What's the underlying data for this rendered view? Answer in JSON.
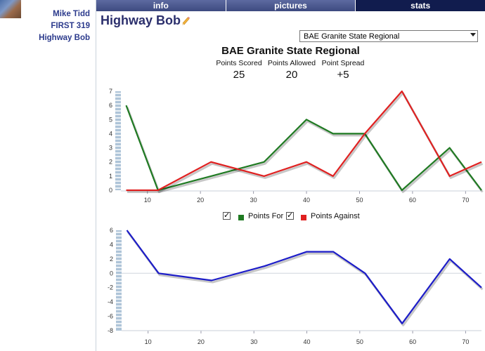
{
  "user": {
    "name": "Mike Tidd",
    "team": "FIRST 319",
    "robot": "Highway Bob"
  },
  "tabs": [
    {
      "label": "info",
      "active": false
    },
    {
      "label": "pictures",
      "active": false
    },
    {
      "label": "stats",
      "active": true
    }
  ],
  "page_title": "Highway Bob",
  "event_select": {
    "selected": "BAE Granite State Regional"
  },
  "event": {
    "title": "BAE Granite State Regional",
    "stats": [
      {
        "label": "Points Scored",
        "value": "25"
      },
      {
        "label": "Points Allowed",
        "value": "20"
      },
      {
        "label": "Point Spread",
        "value": "+5"
      }
    ]
  },
  "legend": {
    "points_for": "Points For",
    "points_against": "Points Against"
  },
  "colors": {
    "points_for": "#1f7a22",
    "points_against": "#e02020",
    "spread": "#1c1cc8"
  },
  "chart_data": [
    {
      "type": "line",
      "xlim": [
        5,
        73
      ],
      "ylim": [
        0,
        7
      ],
      "x_ticks": [
        10,
        20,
        30,
        40,
        50,
        60,
        70
      ],
      "y_ticks": [
        0,
        1,
        2,
        3,
        4,
        5,
        6,
        7
      ],
      "series": [
        {
          "name": "Points For",
          "x": [
            6,
            12,
            22,
            32,
            40,
            45,
            51,
            58,
            67,
            73
          ],
          "values": [
            6,
            0,
            1,
            2,
            5,
            4,
            4,
            0,
            3,
            0
          ]
        },
        {
          "name": "Points Against",
          "x": [
            6,
            12,
            22,
            32,
            40,
            45,
            51,
            58,
            67,
            73
          ],
          "values": [
            0,
            0,
            2,
            1,
            2,
            1,
            4,
            7,
            1,
            2
          ]
        }
      ]
    },
    {
      "type": "line",
      "xlim": [
        5,
        73
      ],
      "ylim": [
        -8,
        6
      ],
      "x_ticks": [
        10,
        20,
        30,
        40,
        50,
        60,
        70
      ],
      "y_ticks": [
        6,
        4,
        2,
        0,
        -2,
        -4,
        -6,
        -8
      ],
      "series": [
        {
          "x": [
            6,
            12,
            22,
            32,
            40,
            45,
            51,
            58,
            67,
            73
          ],
          "values": [
            6,
            0,
            -1,
            1,
            3,
            3,
            0,
            -7,
            2,
            -2
          ]
        }
      ]
    }
  ]
}
